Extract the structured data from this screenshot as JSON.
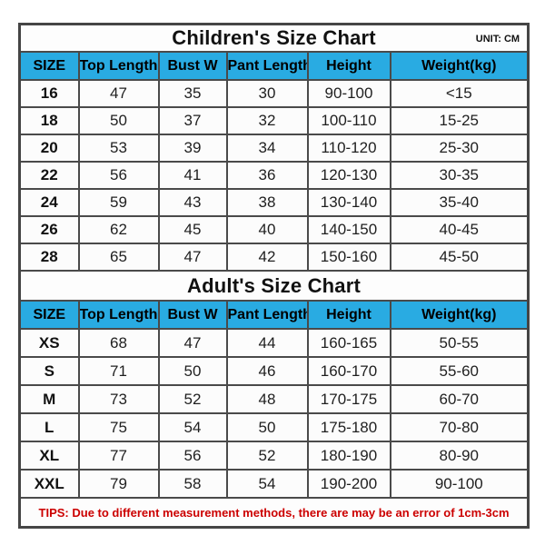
{
  "unit_label": "UNIT: CM",
  "tips": "TIPS: Due to different measurement methods, there are may be an error of 1cm-3cm",
  "colors": {
    "header_bg": "#29abe2",
    "tips_red": "#cc0000",
    "border": "#4a4a4a",
    "cell_bg": "#fcfcfc"
  },
  "chart_data": [
    {
      "type": "table",
      "title": "Children's Size Chart",
      "columns": [
        "SIZE",
        "Top Length",
        "Bust W",
        "Pant Length",
        "Height",
        "Weight(kg)"
      ],
      "rows": [
        [
          "16",
          "47",
          "35",
          "30",
          "90-100",
          "<15"
        ],
        [
          "18",
          "50",
          "37",
          "32",
          "100-110",
          "15-25"
        ],
        [
          "20",
          "53",
          "39",
          "34",
          "110-120",
          "25-30"
        ],
        [
          "22",
          "56",
          "41",
          "36",
          "120-130",
          "30-35"
        ],
        [
          "24",
          "59",
          "43",
          "38",
          "130-140",
          "35-40"
        ],
        [
          "26",
          "62",
          "45",
          "40",
          "140-150",
          "40-45"
        ],
        [
          "28",
          "65",
          "47",
          "42",
          "150-160",
          "45-50"
        ]
      ]
    },
    {
      "type": "table",
      "title": "Adult's Size Chart",
      "columns": [
        "SIZE",
        "Top Length",
        "Bust W",
        "Pant Length",
        "Height",
        "Weight(kg)"
      ],
      "rows": [
        [
          "XS",
          "68",
          "47",
          "44",
          "160-165",
          "50-55"
        ],
        [
          "S",
          "71",
          "50",
          "46",
          "160-170",
          "55-60"
        ],
        [
          "M",
          "73",
          "52",
          "48",
          "170-175",
          "60-70"
        ],
        [
          "L",
          "75",
          "54",
          "50",
          "175-180",
          "70-80"
        ],
        [
          "XL",
          "77",
          "56",
          "52",
          "180-190",
          "80-90"
        ],
        [
          "XXL",
          "79",
          "58",
          "54",
          "190-200",
          "90-100"
        ]
      ]
    }
  ]
}
